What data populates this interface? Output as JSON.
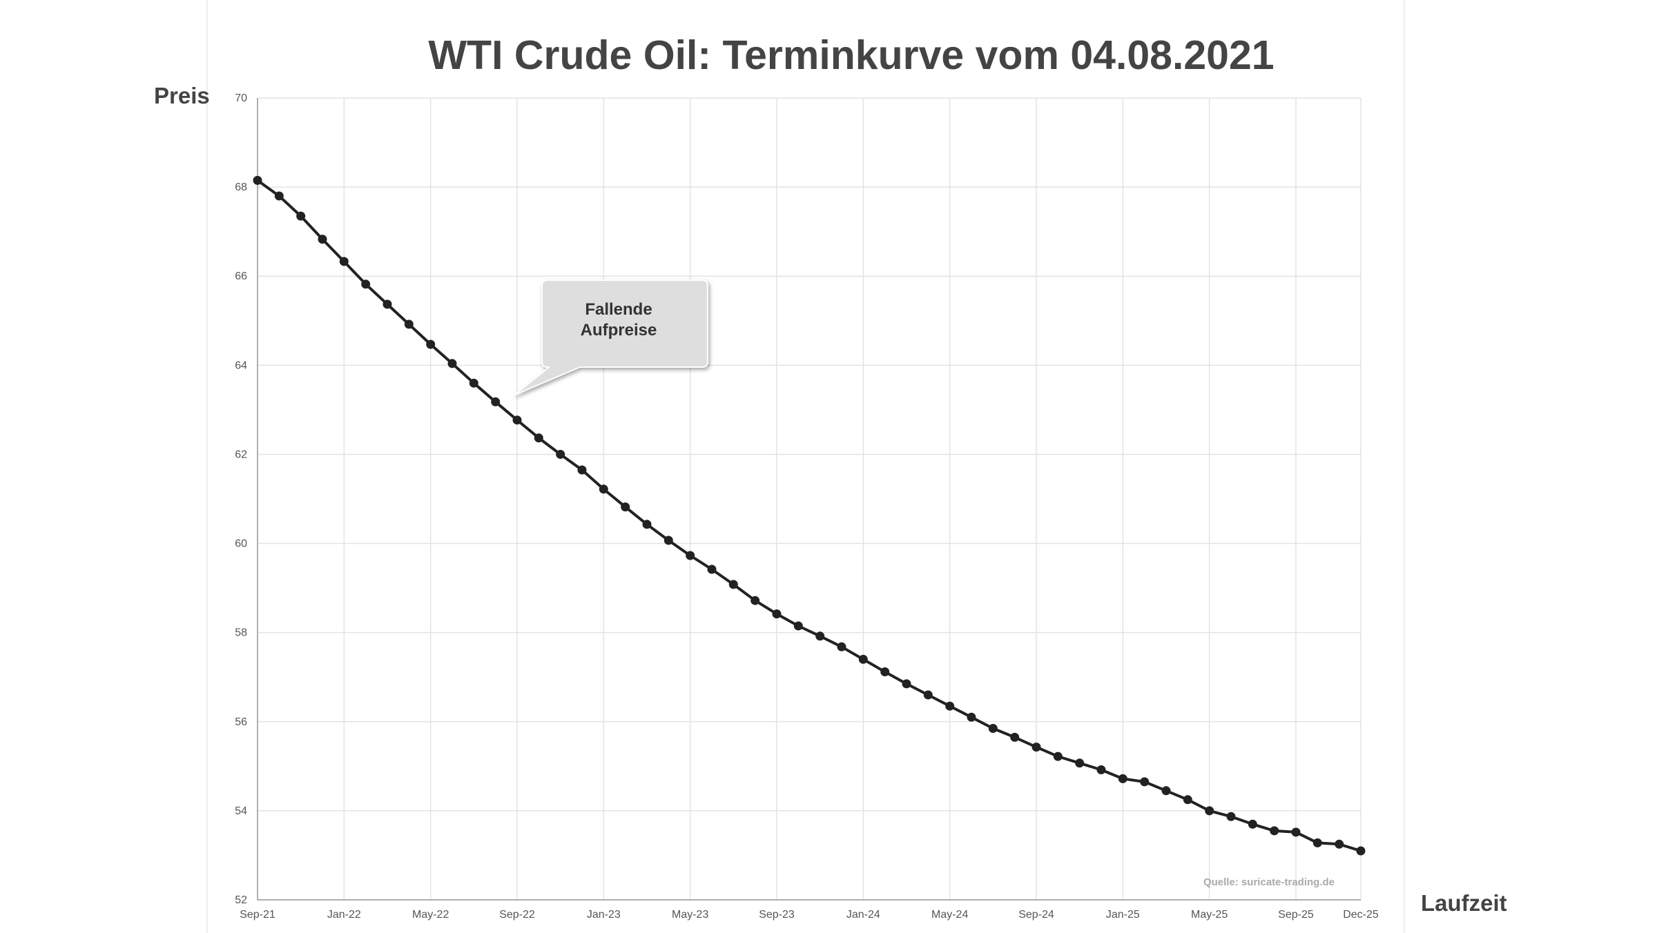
{
  "chart_data": {
    "type": "line",
    "title": "WTI Crude Oil: Terminkurve vom 04.08.2021",
    "xlabel": "Laufzeit",
    "ylabel": "Preis",
    "ylim": [
      52,
      70
    ],
    "yticks": [
      52,
      54,
      56,
      58,
      60,
      62,
      64,
      66,
      68,
      70
    ],
    "x_range": [
      "2021-09",
      "2025-12"
    ],
    "xticks": [
      {
        "month": "2021-09",
        "label": "Sep-21"
      },
      {
        "month": "2022-01",
        "label": "Jan-22"
      },
      {
        "month": "2022-05",
        "label": "May-22"
      },
      {
        "month": "2022-09",
        "label": "Sep-22"
      },
      {
        "month": "2023-01",
        "label": "Jan-23"
      },
      {
        "month": "2023-05",
        "label": "May-23"
      },
      {
        "month": "2023-09",
        "label": "Sep-23"
      },
      {
        "month": "2024-01",
        "label": "Jan-24"
      },
      {
        "month": "2024-05",
        "label": "May-24"
      },
      {
        "month": "2024-09",
        "label": "Sep-24"
      },
      {
        "month": "2025-01",
        "label": "Jan-25"
      },
      {
        "month": "2025-05",
        "label": "May-25"
      },
      {
        "month": "2025-09",
        "label": "Sep-25"
      },
      {
        "month": "2025-12",
        "label": "Dec-25"
      }
    ],
    "grid": true,
    "legend": "none",
    "series": [
      {
        "color": "#222222",
        "points": [
          [
            "2021-09",
            68.15
          ],
          [
            "2021-10",
            67.8
          ],
          [
            "2021-11",
            67.35
          ],
          [
            "2021-12",
            66.83
          ],
          [
            "2022-01",
            66.33
          ],
          [
            "2022-02",
            65.82
          ],
          [
            "2022-03",
            65.37
          ],
          [
            "2022-04",
            64.92
          ],
          [
            "2022-05",
            64.47
          ],
          [
            "2022-06",
            64.04
          ],
          [
            "2022-07",
            63.6
          ],
          [
            "2022-08",
            63.18
          ],
          [
            "2022-09",
            62.77
          ],
          [
            "2022-10",
            62.37
          ],
          [
            "2022-11",
            62.0
          ],
          [
            "2022-12",
            61.65
          ],
          [
            "2023-01",
            61.22
          ],
          [
            "2023-02",
            60.82
          ],
          [
            "2023-03",
            60.43
          ],
          [
            "2023-04",
            60.07
          ],
          [
            "2023-05",
            59.73
          ],
          [
            "2023-06",
            59.42
          ],
          [
            "2023-07",
            59.08
          ],
          [
            "2023-08",
            58.72
          ],
          [
            "2023-09",
            58.42
          ],
          [
            "2023-10",
            58.15
          ],
          [
            "2023-11",
            57.92
          ],
          [
            "2023-12",
            57.68
          ],
          [
            "2024-01",
            57.4
          ],
          [
            "2024-02",
            57.12
          ],
          [
            "2024-03",
            56.85
          ],
          [
            "2024-04",
            56.6
          ],
          [
            "2024-05",
            56.35
          ],
          [
            "2024-06",
            56.1
          ],
          [
            "2024-07",
            55.85
          ],
          [
            "2024-08",
            55.65
          ],
          [
            "2024-09",
            55.43
          ],
          [
            "2024-10",
            55.22
          ],
          [
            "2024-11",
            55.07
          ],
          [
            "2024-12",
            54.92
          ],
          [
            "2025-01",
            54.72
          ],
          [
            "2025-02",
            54.65
          ],
          [
            "2025-03",
            54.45
          ],
          [
            "2025-04",
            54.25
          ],
          [
            "2025-05",
            54.0
          ],
          [
            "2025-06",
            53.87
          ],
          [
            "2025-07",
            53.7
          ],
          [
            "2025-08",
            53.55
          ],
          [
            "2025-09",
            53.52
          ],
          [
            "2025-10",
            53.28
          ],
          [
            "2025-11",
            53.25
          ],
          [
            "2025-12",
            53.1
          ]
        ]
      }
    ],
    "annotations": [
      {
        "text_lines": [
          "Fallende",
          "Aufpreise"
        ],
        "points_to": [
          "2022-09",
          63.3
        ]
      }
    ],
    "source": "Quelle: suricate-trading.de"
  }
}
